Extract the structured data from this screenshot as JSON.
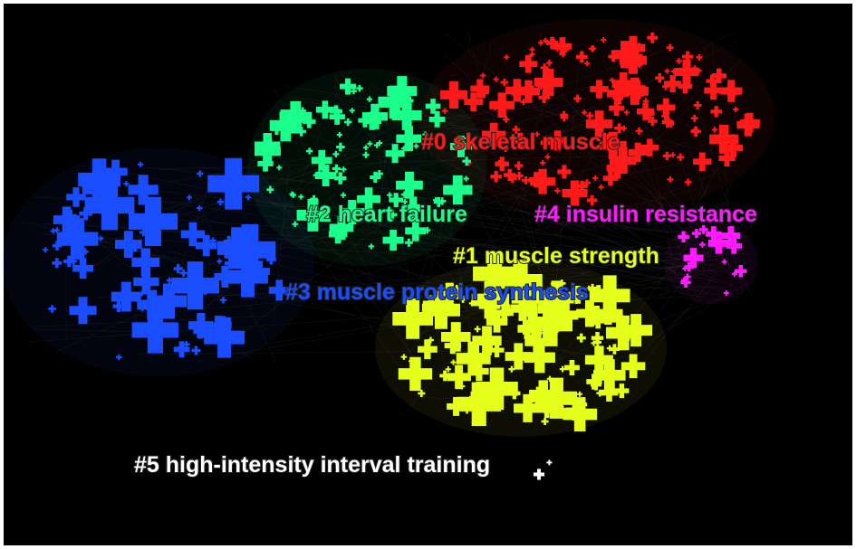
{
  "clusters": [
    {
      "label": "#0 skeletal muscle",
      "color": "#ff1a1a"
    },
    {
      "label": "#1 muscle strength",
      "color": "#e6ff1a"
    },
    {
      "label": "#2 heart failure",
      "color": "#1aff8c"
    },
    {
      "label": "#3 muscle protein synthesis",
      "color": "#1a4dff"
    },
    {
      "label": "#4 insulin resistance",
      "color": "#ff1aff"
    },
    {
      "label": "#5 high-intensity interval training",
      "color": "#ffffff"
    }
  ]
}
